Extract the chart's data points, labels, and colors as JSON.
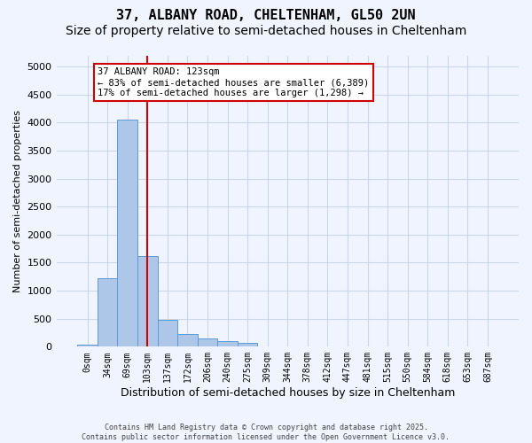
{
  "title_line1": "37, ALBANY ROAD, CHELTENHAM, GL50 2UN",
  "title_line2": "Size of property relative to semi-detached houses in Cheltenham",
  "xlabel": "Distribution of semi-detached houses by size in Cheltenham",
  "ylabel": "Number of semi-detached properties",
  "bin_labels": [
    "0sqm",
    "34sqm",
    "69sqm",
    "103sqm",
    "137sqm",
    "172sqm",
    "206sqm",
    "240sqm",
    "275sqm",
    "309sqm",
    "344sqm",
    "378sqm",
    "412sqm",
    "447sqm",
    "481sqm",
    "515sqm",
    "550sqm",
    "584sqm",
    "618sqm",
    "653sqm",
    "687sqm"
  ],
  "bar_heights": [
    30,
    1230,
    4050,
    1620,
    480,
    220,
    140,
    100,
    70,
    0,
    0,
    0,
    0,
    0,
    0,
    0,
    0,
    0,
    0,
    0,
    0
  ],
  "bar_color": "#aec6e8",
  "bar_edge_color": "#5b9bd5",
  "grid_color": "#c8d8e8",
  "property_bin_index": 3,
  "vline_color": "#cc0000",
  "annotation_text_line1": "37 ALBANY ROAD: 123sqm",
  "annotation_text_line2": "← 83% of semi-detached houses are smaller (6,389)",
  "annotation_text_line3": "17% of semi-detached houses are larger (1,298) →",
  "annotation_box_color": "#ffffff",
  "annotation_box_edge": "#cc0000",
  "footer_text": "Contains HM Land Registry data © Crown copyright and database right 2025.\nContains public sector information licensed under the Open Government Licence v3.0.",
  "ylim": [
    0,
    5200
  ],
  "yticks": [
    0,
    500,
    1000,
    1500,
    2000,
    2500,
    3000,
    3500,
    4000,
    4500,
    5000
  ],
  "background_color": "#f0f4ff",
  "title_fontsize": 11,
  "subtitle_fontsize": 10
}
